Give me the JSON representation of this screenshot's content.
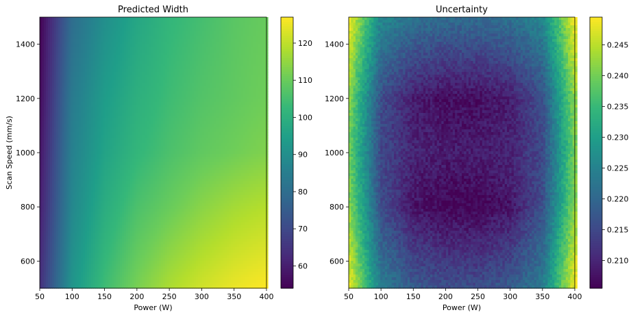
{
  "chart_data": [
    {
      "type": "heatmap",
      "title": "Predicted Width",
      "xlabel": "Power (W)",
      "ylabel": "Scan Speed (mm/s)",
      "xlim": [
        50,
        400
      ],
      "ylim": [
        500,
        1500
      ],
      "x_ticks": [
        50,
        100,
        150,
        200,
        250,
        300,
        350,
        400
      ],
      "y_ticks": [
        600,
        800,
        1000,
        1200,
        1400
      ],
      "colormap": "viridis",
      "colorbar": {
        "min": 54,
        "max": 127,
        "ticks": [
          60,
          70,
          80,
          90,
          100,
          110,
          120
        ]
      },
      "values_sample": {
        "x": [
          50,
          100,
          150,
          200,
          250,
          300,
          350,
          400
        ],
        "y": [
          1500,
          1200,
          1000,
          800,
          500
        ],
        "z": [
          [
            54,
            80,
            90,
            97,
            102,
            105,
            108,
            110
          ],
          [
            56,
            84,
            94,
            100,
            104,
            107,
            109,
            111
          ],
          [
            58,
            86,
            96,
            102,
            106,
            109,
            111,
            113
          ],
          [
            60,
            88,
            99,
            106,
            110,
            114,
            117,
            119
          ],
          [
            64,
            92,
            104,
            112,
            118,
            122,
            125,
            127
          ]
        ]
      }
    },
    {
      "type": "heatmap",
      "title": "Uncertainty",
      "xlabel": "Power (W)",
      "ylabel": "",
      "xlim": [
        50,
        400
      ],
      "ylim": [
        500,
        1500
      ],
      "x_ticks": [
        50,
        100,
        150,
        200,
        250,
        300,
        350,
        400
      ],
      "y_ticks": [
        600,
        800,
        1000,
        1200,
        1400
      ],
      "colormap": "viridis",
      "colorbar": {
        "min": 0.2055,
        "max": 0.2495,
        "ticks": [
          0.21,
          0.215,
          0.22,
          0.225,
          0.23,
          0.235,
          0.24,
          0.245
        ]
      },
      "values_sample": {
        "x": [
          50,
          100,
          150,
          200,
          250,
          300,
          350,
          400
        ],
        "y": [
          1500,
          1200,
          1000,
          800,
          500
        ],
        "z": [
          [
            0.249,
            0.226,
            0.222,
            0.221,
            0.221,
            0.222,
            0.226,
            0.249
          ],
          [
            0.242,
            0.216,
            0.209,
            0.207,
            0.207,
            0.209,
            0.216,
            0.242
          ],
          [
            0.24,
            0.215,
            0.21,
            0.209,
            0.209,
            0.21,
            0.215,
            0.24
          ],
          [
            0.242,
            0.216,
            0.208,
            0.206,
            0.206,
            0.208,
            0.216,
            0.242
          ],
          [
            0.249,
            0.224,
            0.218,
            0.216,
            0.216,
            0.218,
            0.224,
            0.249
          ]
        ]
      }
    }
  ]
}
